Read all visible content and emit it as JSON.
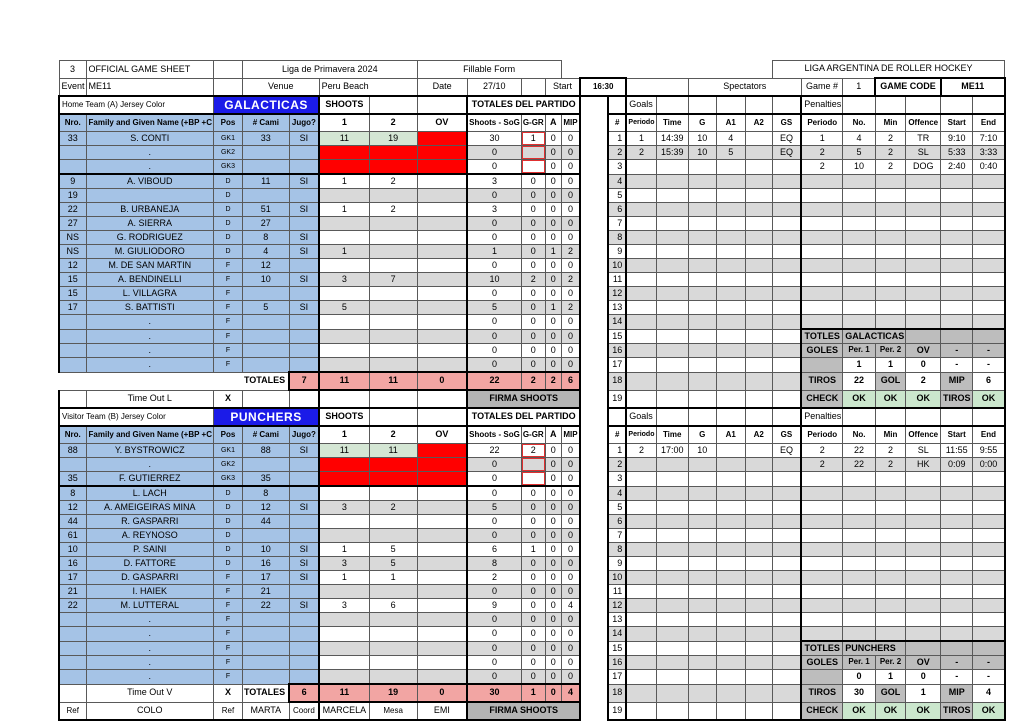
{
  "header": {
    "sheet_no": "3",
    "title": "OFFICIAL GAME SHEET",
    "league": "Liga de Primavera 2024",
    "form_type": "Fillable Form",
    "org": "LIGA ARGENTINA DE ROLLER HOCKEY",
    "event_label": "Event",
    "event": "ME11",
    "venue_label": "Venue",
    "venue": "Peru Beach",
    "date_label": "Date",
    "date": "27/10",
    "start_label": "Start",
    "start_time": "16:30",
    "spectators_label": "Spectators",
    "game_no_label": "Game #",
    "game_no": "1",
    "game_code_label": "GAME CODE",
    "game_code": "ME11"
  },
  "labels": {
    "shoots": "SHOOTS",
    "totales_partido": "TOTALES DEL PARTIDO",
    "goals": "Goals",
    "penalties": "Penalties",
    "totales": "TOTALES",
    "firma": "FIRMA SHOOTS",
    "x": "X"
  },
  "columns": {
    "roster": [
      "Nro.",
      "Family and Given Name (+BP +C",
      "Pos",
      "# Cami",
      "Jugo?",
      "1",
      "2",
      "OV",
      "Shoots - SoG",
      "G-GR",
      "A",
      "MIP"
    ],
    "goals": [
      "#",
      "Periodo",
      "Time",
      "G",
      "A1",
      "A2",
      "GS"
    ],
    "penalties": [
      "Periodo",
      "No.",
      "Min",
      "Offence",
      "Start",
      "End"
    ]
  },
  "teams": [
    {
      "side_label": "Home Team (A) Jersey Color",
      "name": "GALACTICAS",
      "timeout_label": "Time Out L",
      "players": [
        [
          "33",
          "S. CONTI",
          "GK1",
          "33",
          "SI",
          "11",
          "19",
          "30",
          "1",
          "0",
          "0"
        ],
        [
          "",
          ".",
          "GK2",
          "",
          "",
          "",
          "",
          "0",
          "",
          "0",
          "0"
        ],
        [
          "",
          ".",
          "GK3",
          "",
          "",
          "",
          "",
          "0",
          "",
          "0",
          "0"
        ],
        [
          "9",
          "A. VIBOUD",
          "D",
          "11",
          "SI",
          "1",
          "2",
          "3",
          "0",
          "0",
          "0"
        ],
        [
          "19",
          "",
          "D",
          "",
          "",
          "",
          "",
          "0",
          "0",
          "0",
          "0"
        ],
        [
          "22",
          "B. URBANEJA",
          "D",
          "51",
          "SI",
          "1",
          "2",
          "3",
          "0",
          "0",
          "0"
        ],
        [
          "27",
          "A. SIERRA",
          "D",
          "27",
          "",
          "",
          "",
          "0",
          "0",
          "0",
          "0"
        ],
        [
          "NS",
          "G. RODRIGUEZ",
          "D",
          "8",
          "SI",
          "",
          "",
          "0",
          "0",
          "0",
          "0"
        ],
        [
          "NS",
          "M. GIULIODORO",
          "D",
          "4",
          "SI",
          "1",
          "",
          "1",
          "0",
          "1",
          "2"
        ],
        [
          "12",
          "M. DE SAN MARTIN",
          "F",
          "12",
          "",
          "",
          "",
          "0",
          "0",
          "0",
          "0"
        ],
        [
          "15",
          "A. BENDINELLI",
          "F",
          "10",
          "SI",
          "3",
          "7",
          "10",
          "2",
          "0",
          "2"
        ],
        [
          "15",
          "L. VILLAGRA",
          "F",
          "",
          "",
          "",
          "",
          "0",
          "0",
          "0",
          "0"
        ],
        [
          "17",
          "S. BATTISTI",
          "F",
          "5",
          "SI",
          "5",
          "",
          "5",
          "0",
          "1",
          "2"
        ],
        [
          "",
          ".",
          "F",
          "",
          "",
          "",
          "",
          "0",
          "0",
          "0",
          "0"
        ],
        [
          "",
          ".",
          "F",
          "",
          "",
          "",
          "",
          "0",
          "0",
          "0",
          "0"
        ],
        [
          "",
          ".",
          "F",
          "",
          "",
          "",
          "",
          "0",
          "0",
          "0",
          "0"
        ],
        [
          "",
          ".",
          "F",
          "",
          "",
          "",
          "",
          "0",
          "0",
          "0",
          "0"
        ]
      ],
      "totals": {
        "jugo": "7",
        "s1": "11",
        "s2": "11",
        "ov": "0",
        "sog": "22",
        "ggr": "2",
        "a": "2",
        "mip": "6"
      },
      "goals": [
        [
          "1",
          "14:39",
          "10",
          "4",
          "",
          "EQ"
        ],
        [
          "2",
          "15:39",
          "10",
          "5",
          "",
          "EQ"
        ]
      ],
      "penalties": [
        [
          "1",
          "4",
          "2",
          "TR",
          "9:10",
          "7:10"
        ],
        [
          "2",
          "5",
          "2",
          "SL",
          "5:33",
          "3:33"
        ],
        [
          "2",
          "10",
          "2",
          "DOG",
          "2:40",
          "0:40"
        ]
      ],
      "summary": {
        "totles": "TOTLES",
        "team": "GALACTICAS",
        "goles_label": "GOLES",
        "per1": "Per. 1",
        "per2": "Per. 2",
        "ov": "OV",
        "dash1": "-",
        "dash2": "-",
        "goles": [
          "1",
          "1",
          "0",
          "-",
          "-"
        ],
        "tiros_label": "TIROS",
        "tiros": "22",
        "gol_label": "GOL",
        "gol": "2",
        "mip_label": "MIP",
        "mip": "6",
        "check_label": "CHECK",
        "check": [
          "OK",
          "OK",
          "OK"
        ],
        "check_tiros_label": "TIROS",
        "check_tiros": "OK"
      }
    },
    {
      "side_label": "Visitor Team (B) Jersey Color",
      "name": "PUNCHERS",
      "timeout_label": "Time Out V",
      "players": [
        [
          "88",
          "Y. BYSTROWICZ",
          "GK1",
          "88",
          "SI",
          "11",
          "11",
          "22",
          "2",
          "0",
          "0"
        ],
        [
          "",
          ".",
          "GK2",
          "",
          "",
          "",
          "",
          "0",
          "",
          "0",
          "0"
        ],
        [
          "35",
          "F. GUTIERREZ",
          "GK3",
          "35",
          "",
          "",
          "",
          "0",
          "",
          "0",
          "0"
        ],
        [
          "8",
          "L. LACH",
          "D",
          "8",
          "",
          "",
          "",
          "0",
          "0",
          "0",
          "0"
        ],
        [
          "12",
          "A. AMEIGEIRAS MINA",
          "D",
          "12",
          "SI",
          "3",
          "2",
          "5",
          "0",
          "0",
          "0"
        ],
        [
          "44",
          "R. GASPARRI",
          "D",
          "44",
          "",
          "",
          "",
          "0",
          "0",
          "0",
          "0"
        ],
        [
          "61",
          "A. REYNOSO",
          "D",
          "",
          "",
          "",
          "",
          "0",
          "0",
          "0",
          "0"
        ],
        [
          "10",
          "P. SAINI",
          "D",
          "10",
          "SI",
          "1",
          "5",
          "6",
          "1",
          "0",
          "0"
        ],
        [
          "16",
          "D. FATTORE",
          "D",
          "16",
          "SI",
          "3",
          "5",
          "8",
          "0",
          "0",
          "0"
        ],
        [
          "17",
          "D. GASPARRI",
          "F",
          "17",
          "SI",
          "1",
          "1",
          "2",
          "0",
          "0",
          "0"
        ],
        [
          "21",
          "I. HAIEK",
          "F",
          "21",
          "",
          "",
          "",
          "0",
          "0",
          "0",
          "0"
        ],
        [
          "22",
          "M. LUTTERAL",
          "F",
          "22",
          "SI",
          "3",
          "6",
          "9",
          "0",
          "0",
          "4"
        ],
        [
          "",
          ".",
          "F",
          "",
          "",
          "",
          "",
          "0",
          "0",
          "0",
          "0"
        ],
        [
          "",
          ".",
          "F",
          "",
          "",
          "",
          "",
          "0",
          "0",
          "0",
          "0"
        ],
        [
          "",
          ".",
          "F",
          "",
          "",
          "",
          "",
          "0",
          "0",
          "0",
          "0"
        ],
        [
          "",
          ".",
          "F",
          "",
          "",
          "",
          "",
          "0",
          "0",
          "0",
          "0"
        ],
        [
          "",
          ".",
          "F",
          "",
          "",
          "",
          "",
          "0",
          "0",
          "0",
          "0"
        ]
      ],
      "totals": {
        "jugo": "6",
        "s1": "11",
        "s2": "19",
        "ov": "0",
        "sog": "30",
        "ggr": "1",
        "a": "0",
        "mip": "4"
      },
      "goals": [
        [
          "2",
          "17:00",
          "10",
          "",
          "",
          "EQ"
        ]
      ],
      "penalties": [
        [
          "2",
          "22",
          "2",
          "SL",
          "11:55",
          "9:55"
        ],
        [
          "2",
          "22",
          "2",
          "HK",
          "0:09",
          "0:00"
        ]
      ],
      "summary": {
        "totles": "TOTLES",
        "team": "PUNCHERS",
        "goles_label": "GOLES",
        "per1": "Per. 1",
        "per2": "Per. 2",
        "ov": "OV",
        "dash1": "-",
        "dash2": "-",
        "goles": [
          "0",
          "1",
          "0",
          "-",
          "-"
        ],
        "tiros_label": "TIROS",
        "tiros": "30",
        "gol_label": "GOL",
        "gol": "1",
        "mip_label": "MIP",
        "mip": "4",
        "check_label": "CHECK",
        "check": [
          "OK",
          "OK",
          "OK"
        ],
        "check_tiros_label": "TIROS",
        "check_tiros": "OK"
      },
      "officials": {
        "ref1_label": "Ref",
        "ref1": "COLO",
        "ref2_label": "Ref",
        "ref2": "MARTA",
        "coord_label": "Coord",
        "coord": "MARCELA",
        "mesa_label": "Mesa",
        "mesa": "EMI"
      }
    }
  ]
}
